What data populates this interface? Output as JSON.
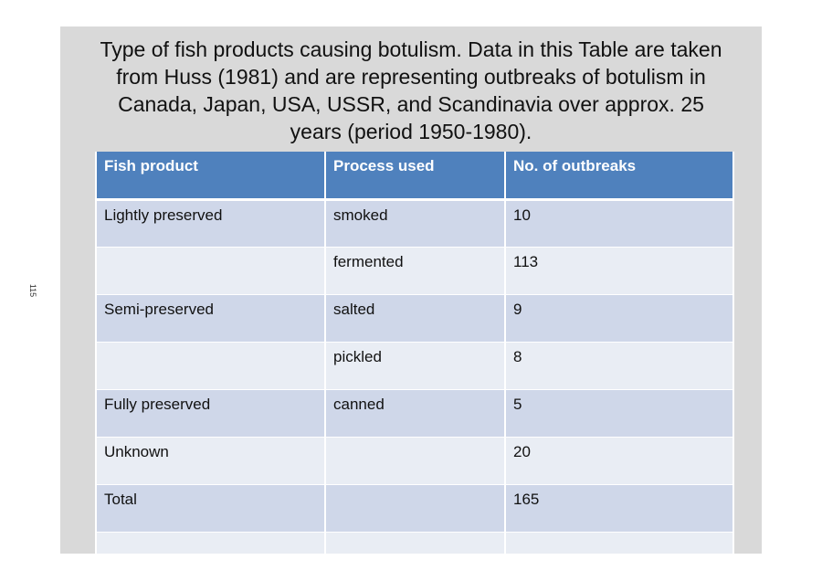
{
  "page_number": "115",
  "title": "Type of fish products causing botulism. Data in this Table are taken from Huss (1981) and are representing outbreaks of botulism in Canada, Japan, USA, USSR, and Scandinavia over approx. 25 years (period 1950-1980).",
  "table": {
    "headers": [
      "Fish product",
      "Process used",
      "No. of outbreaks"
    ],
    "rows": [
      [
        "Lightly preserved",
        "smoked",
        "10"
      ],
      [
        "",
        "fermented",
        "113"
      ],
      [
        "Semi-preserved",
        "salted",
        "9"
      ],
      [
        "",
        "pickled",
        "8"
      ],
      [
        "Fully preserved",
        "canned",
        "5"
      ],
      [
        "Unknown",
        "",
        "20"
      ],
      [
        "Total",
        "",
        "165"
      ],
      [
        "",
        "",
        ""
      ]
    ]
  }
}
